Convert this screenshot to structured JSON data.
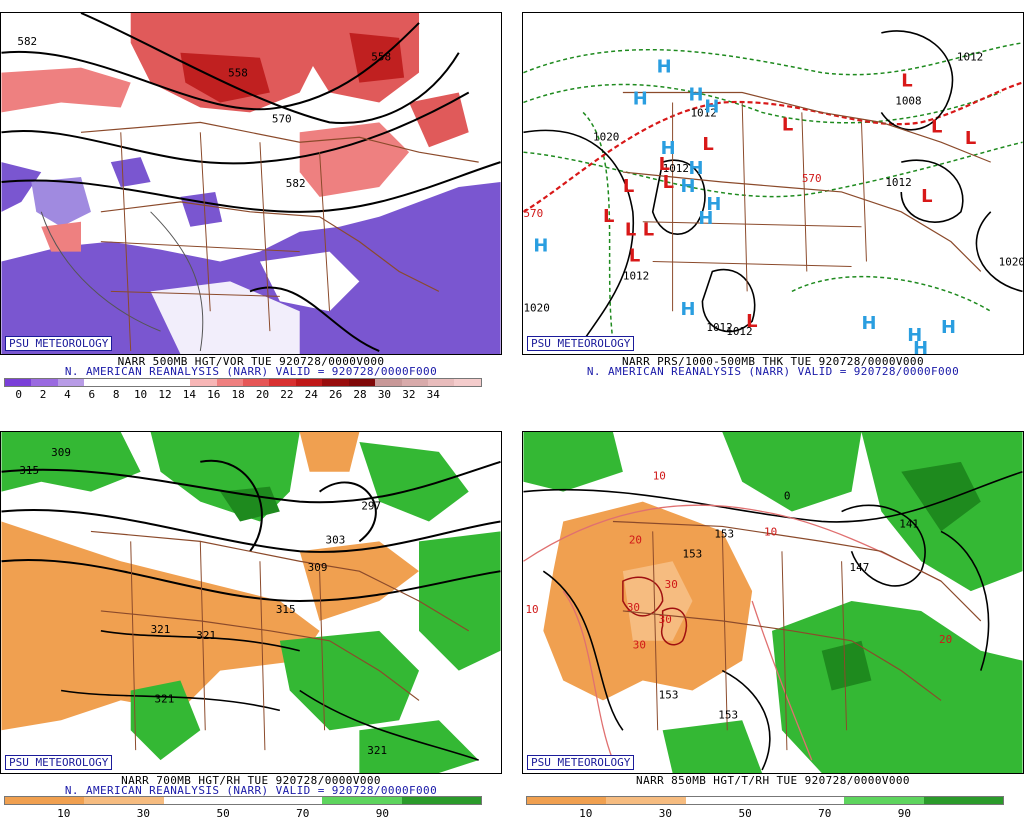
{
  "attribution": "PSU METEOROLOGY",
  "panels": [
    {
      "id": "vorticity",
      "caption_line1": "NARR 500MB HGT/VOR TUE 920728/0000V000",
      "caption_line2": "N. AMERICAN REANALYSIS (NARR) VALID = 920728/0000F000",
      "colorbar_colors": [
        "#7a3fd8",
        "#9a6ae0",
        "#b89ce6",
        "#ffffff",
        "#ffffff",
        "#ffffff",
        "#ffffff",
        "#f7b6b6",
        "#ef8080",
        "#e65656",
        "#d83030",
        "#c01818",
        "#980c0c",
        "#800808",
        "#c89898",
        "#d8aaaa",
        "#e8bcbc",
        "#f4cccc"
      ],
      "colorbar_ticks": [
        "0",
        "2",
        "4",
        "6",
        "8",
        "10",
        "12",
        "14",
        "16",
        "18",
        "20",
        "22",
        "24",
        "26",
        "28",
        "30",
        "32",
        "34"
      ],
      "contour_labels": [
        "582",
        "558",
        "558",
        "570",
        "582"
      ]
    },
    {
      "id": "pressure",
      "caption_line1": "NARR PRS/1000-500MB THK TUE 920728/0000V000",
      "caption_line2": "N. AMERICAN REANALYSIS (NARR) VALID = 920728/0000F000",
      "contour_labels": [
        "1012",
        "1020",
        "1008",
        "1012",
        "1012",
        "1012",
        "1012",
        "570",
        "570",
        "1012",
        "1020",
        "1012",
        "1020"
      ],
      "highs": [
        "H",
        "H",
        "H",
        "H",
        "H",
        "H",
        "H",
        "H",
        "H",
        "H",
        "H",
        "H",
        "H",
        "H",
        "H"
      ],
      "lows": [
        "L",
        "L",
        "L",
        "L",
        "L",
        "L",
        "L",
        "L",
        "L",
        "L",
        "L",
        "L",
        "L",
        "L"
      ]
    },
    {
      "id": "humidity700",
      "caption_line1": "NARR 700MB HGT/RH TUE 920728/0000V000",
      "caption_line2": "N. AMERICAN REANALYSIS (NARR) VALID = 920728/0000F000",
      "colorbar_colors": [
        "#f0a050",
        "#f0a050",
        "#f6bc80",
        "#f6bc80",
        "#ffffff",
        "#ffffff",
        "#ffffff",
        "#ffffff",
        "#5ed45e",
        "#5ed45e",
        "#2a9a2a",
        "#2a9a2a"
      ],
      "colorbar_ticks": [
        "10",
        "30",
        "50",
        "70",
        "90"
      ],
      "contour_labels": [
        "309",
        "315",
        "297",
        "303",
        "309",
        "315",
        "321",
        "321",
        "321",
        "321"
      ]
    },
    {
      "id": "humidity850",
      "caption_line1": "NARR 850MB HGT/T/RH TUE 920728/0000V000",
      "caption_line2": "",
      "colorbar_colors": [
        "#f0a050",
        "#f0a050",
        "#f6bc80",
        "#f6bc80",
        "#ffffff",
        "#ffffff",
        "#ffffff",
        "#ffffff",
        "#5ed45e",
        "#5ed45e",
        "#2a9a2a",
        "#2a9a2a"
      ],
      "colorbar_ticks": [
        "10",
        "30",
        "50",
        "70",
        "90"
      ],
      "contour_labels": [
        "153",
        "153",
        "153",
        "147",
        "141",
        "153"
      ],
      "temp_labels": [
        "10",
        "20",
        "10",
        "10",
        "30",
        "30",
        "30",
        "30",
        "20",
        "0"
      ]
    }
  ]
}
